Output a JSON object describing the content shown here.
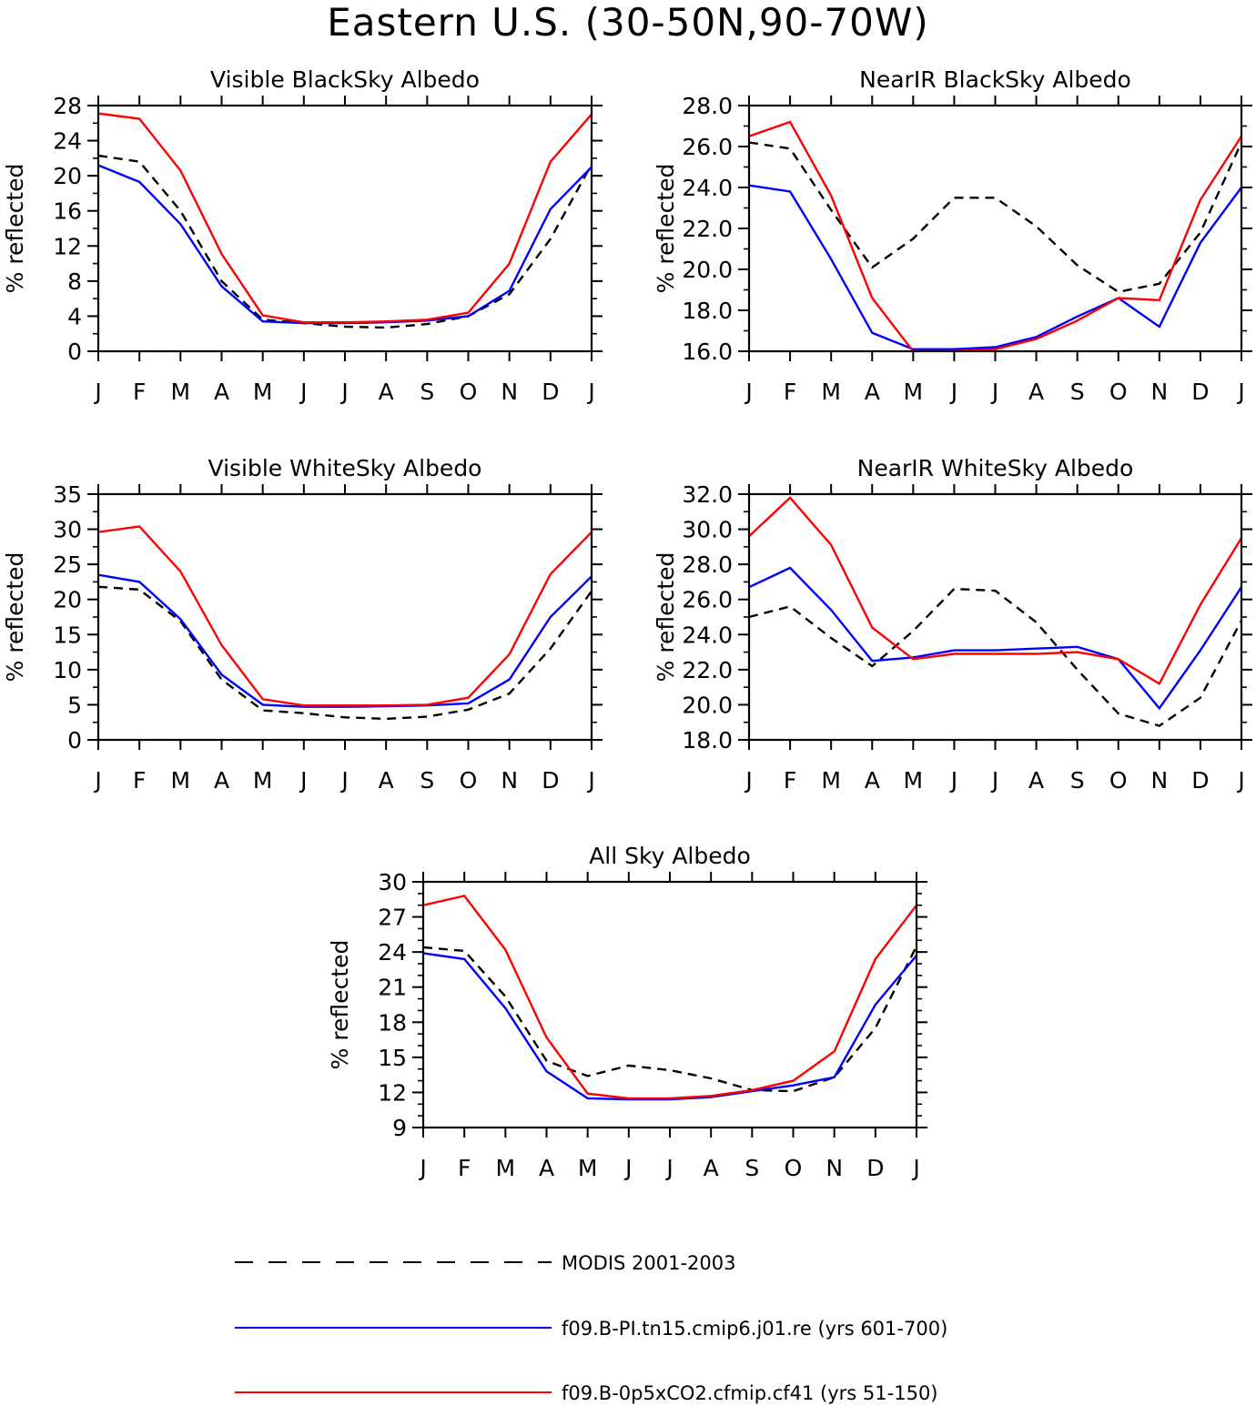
{
  "figure": {
    "title": "Eastern U.S. (30-50N,90-70W)"
  },
  "legend": [
    {
      "label": "MODIS 2001-2003",
      "color": "#000000",
      "dash": true
    },
    {
      "label": "f09.B-PI.tn15.cmip6.j01.re (yrs 601-700)",
      "color": "#0000ff",
      "dash": false
    },
    {
      "label": "f09.B-0p5xCO2.cfmip.cf41 (yrs 51-150)",
      "color": "#ff0000",
      "dash": false
    }
  ],
  "chart_data": [
    {
      "type": "line",
      "title": "Visible BlackSky Albedo",
      "ylabel": "% reflected",
      "categories": [
        "J",
        "F",
        "M",
        "A",
        "M",
        "J",
        "J",
        "A",
        "S",
        "O",
        "N",
        "D",
        "J"
      ],
      "ylim": [
        0,
        28
      ],
      "yticks": [
        "0",
        "4",
        "8",
        "12",
        "16",
        "20",
        "24",
        "28"
      ],
      "yminor": 2,
      "series": [
        {
          "name": "MODIS 2001-2003",
          "color": "#000000",
          "dash": true,
          "values": [
            22.3,
            21.6,
            16.0,
            8.0,
            3.6,
            3.2,
            2.8,
            2.7,
            3.1,
            4.0,
            6.5,
            12.8,
            21.3
          ]
        },
        {
          "name": "f09.B-PI.tn15.cmip6.j01.re (yrs 601-700)",
          "color": "#0000ff",
          "dash": false,
          "values": [
            21.2,
            19.3,
            14.5,
            7.4,
            3.4,
            3.2,
            3.2,
            3.3,
            3.5,
            4.0,
            6.9,
            16.2,
            21.0
          ]
        },
        {
          "name": "f09.B-0p5xCO2.cfmip.cf41 (yrs 51-150)",
          "color": "#ff0000",
          "dash": false,
          "values": [
            27.1,
            26.5,
            20.6,
            11.1,
            4.1,
            3.3,
            3.3,
            3.4,
            3.6,
            4.4,
            10.0,
            21.6,
            27.0
          ]
        }
      ]
    },
    {
      "type": "line",
      "title": "NearIR BlackSky Albedo",
      "ylabel": "% reflected",
      "categories": [
        "J",
        "F",
        "M",
        "A",
        "M",
        "J",
        "J",
        "A",
        "S",
        "O",
        "N",
        "D",
        "J"
      ],
      "ylim": [
        16,
        28
      ],
      "yticks": [
        "16.0",
        "18.0",
        "20.0",
        "22.0",
        "24.0",
        "26.0",
        "28.0"
      ],
      "yminor": 1,
      "series": [
        {
          "name": "MODIS 2001-2003",
          "color": "#000000",
          "dash": true,
          "values": [
            26.2,
            25.9,
            22.9,
            20.1,
            21.5,
            23.5,
            23.5,
            22.1,
            20.2,
            18.9,
            19.3,
            21.8,
            26.2
          ]
        },
        {
          "name": "f09.B-PI.tn15.cmip6.j01.re (yrs 601-700)",
          "color": "#0000ff",
          "dash": false,
          "values": [
            24.1,
            23.8,
            20.5,
            16.9,
            16.1,
            16.1,
            16.2,
            16.7,
            17.7,
            18.6,
            17.2,
            21.3,
            24.0
          ]
        },
        {
          "name": "f09.B-0p5xCO2.cfmip.cf41 (yrs 51-150)",
          "color": "#ff0000",
          "dash": false,
          "values": [
            26.5,
            27.2,
            23.6,
            18.6,
            16.0,
            16.0,
            16.1,
            16.6,
            17.5,
            18.6,
            18.5,
            23.4,
            26.5
          ]
        }
      ]
    },
    {
      "type": "line",
      "title": "Visible WhiteSky Albedo",
      "ylabel": "% reflected",
      "categories": [
        "J",
        "F",
        "M",
        "A",
        "M",
        "J",
        "J",
        "A",
        "S",
        "O",
        "N",
        "D",
        "J"
      ],
      "ylim": [
        0,
        35
      ],
      "yticks": [
        "0",
        "5",
        "10",
        "15",
        "20",
        "25",
        "30",
        "35"
      ],
      "yminor": 2.5,
      "series": [
        {
          "name": "MODIS 2001-2003",
          "color": "#000000",
          "dash": true,
          "values": [
            21.8,
            21.4,
            16.9,
            8.6,
            4.2,
            3.8,
            3.2,
            3.0,
            3.3,
            4.3,
            6.6,
            13.0,
            21.2
          ]
        },
        {
          "name": "f09.B-PI.tn15.cmip6.j01.re (yrs 601-700)",
          "color": "#0000ff",
          "dash": false,
          "values": [
            23.5,
            22.5,
            17.2,
            9.3,
            5.0,
            4.7,
            4.7,
            4.8,
            4.9,
            5.2,
            8.6,
            17.5,
            23.3
          ]
        },
        {
          "name": "f09.B-0p5xCO2.cfmip.cf41 (yrs 51-150)",
          "color": "#ff0000",
          "dash": false,
          "values": [
            29.6,
            30.4,
            24.0,
            13.5,
            5.8,
            4.9,
            4.9,
            4.9,
            5.0,
            6.0,
            12.2,
            23.6,
            29.6
          ]
        }
      ]
    },
    {
      "type": "line",
      "title": "NearIR WhiteSky Albedo",
      "ylabel": "% reflected",
      "categories": [
        "J",
        "F",
        "M",
        "A",
        "M",
        "J",
        "J",
        "A",
        "S",
        "O",
        "N",
        "D",
        "J"
      ],
      "ylim": [
        18,
        32
      ],
      "yticks": [
        "18.0",
        "20.0",
        "22.0",
        "24.0",
        "26.0",
        "28.0",
        "30.0",
        "32.0"
      ],
      "yminor": 1,
      "series": [
        {
          "name": "MODIS 2001-2003",
          "color": "#000000",
          "dash": true,
          "values": [
            25.0,
            25.6,
            23.8,
            22.2,
            24.2,
            26.6,
            26.5,
            24.7,
            22.0,
            19.5,
            18.8,
            20.4,
            24.8
          ]
        },
        {
          "name": "f09.B-PI.tn15.cmip6.j01.re (yrs 601-700)",
          "color": "#0000ff",
          "dash": false,
          "values": [
            26.7,
            27.8,
            25.4,
            22.5,
            22.7,
            23.1,
            23.1,
            23.2,
            23.3,
            22.6,
            19.8,
            23.1,
            26.7
          ]
        },
        {
          "name": "f09.B-0p5xCO2.cfmip.cf41 (yrs 51-150)",
          "color": "#ff0000",
          "dash": false,
          "values": [
            29.6,
            31.8,
            29.1,
            24.4,
            22.6,
            22.9,
            22.9,
            22.9,
            23.0,
            22.6,
            21.2,
            25.7,
            29.5
          ]
        }
      ]
    },
    {
      "type": "line",
      "title": "All Sky Albedo",
      "ylabel": "% reflected",
      "categories": [
        "J",
        "F",
        "M",
        "A",
        "M",
        "J",
        "J",
        "A",
        "S",
        "O",
        "N",
        "D",
        "J"
      ],
      "ylim": [
        9,
        30
      ],
      "yticks": [
        "9",
        "12",
        "15",
        "18",
        "21",
        "24",
        "27",
        "30"
      ],
      "yminor": 1,
      "series": [
        {
          "name": "MODIS 2001-2003",
          "color": "#000000",
          "dash": true,
          "values": [
            24.4,
            24.1,
            20.2,
            14.7,
            13.4,
            14.3,
            13.9,
            13.2,
            12.2,
            12.1,
            13.3,
            17.5,
            24.5
          ]
        },
        {
          "name": "f09.B-PI.tn15.cmip6.j01.re (yrs 601-700)",
          "color": "#0000ff",
          "dash": false,
          "values": [
            23.9,
            23.4,
            19.2,
            13.8,
            11.5,
            11.4,
            11.4,
            11.6,
            12.1,
            12.6,
            13.3,
            19.5,
            23.7
          ]
        },
        {
          "name": "f09.B-0p5xCO2.cfmip.cf41 (yrs 51-150)",
          "color": "#ff0000",
          "dash": false,
          "values": [
            28.0,
            28.8,
            24.2,
            16.7,
            11.9,
            11.5,
            11.5,
            11.7,
            12.2,
            13.0,
            15.5,
            23.4,
            28.0
          ]
        }
      ]
    }
  ]
}
